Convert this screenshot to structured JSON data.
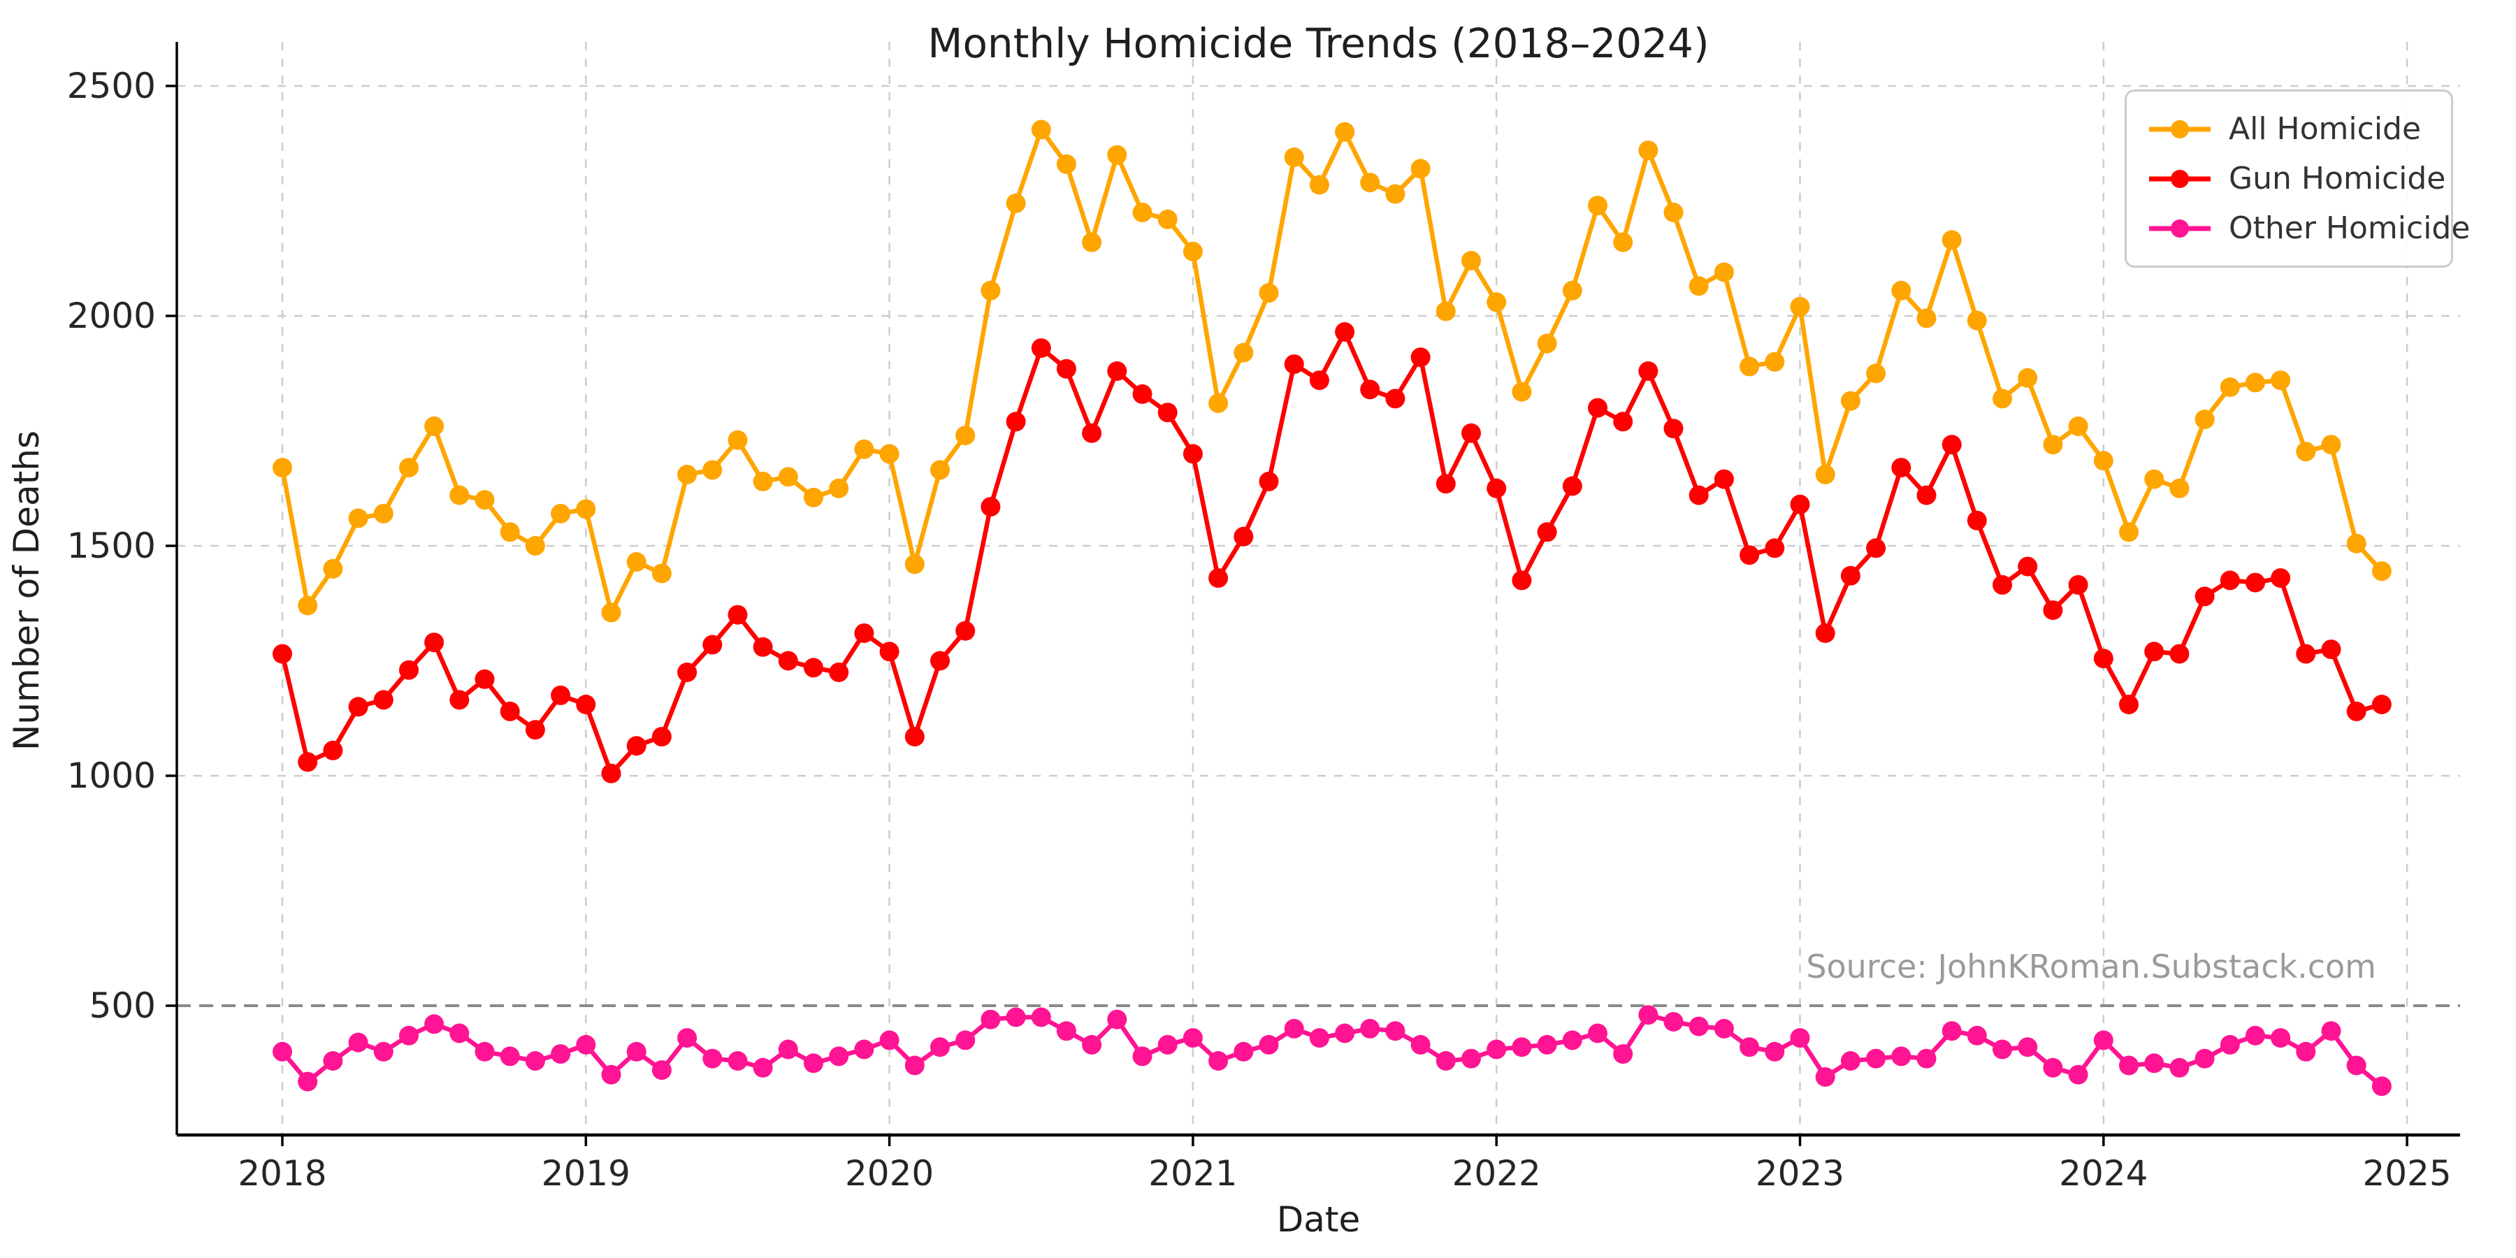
{
  "source_note": "Source: JohnKRoman.Substack.com",
  "chart_data": {
    "type": "line",
    "title": "Monthly Homicide Trends (2018–2024)",
    "xlabel": "Date",
    "ylabel": "Number of Deaths",
    "x_start": "2018-01",
    "x_end": "2024-12",
    "x_tick_labels": [
      "2018",
      "2019",
      "2020",
      "2021",
      "2022",
      "2023",
      "2024",
      "2025"
    ],
    "y_tick_labels": [
      "500",
      "1000",
      "1500",
      "2000",
      "2500"
    ],
    "y_ticks": [
      500,
      1000,
      1500,
      2000,
      2500
    ],
    "ylim": [
      220,
      2600
    ],
    "grid": "dashed",
    "reference_line": {
      "y": 500,
      "style": "dashed",
      "color": "#8a8a8a"
    },
    "legend_position": "upper right",
    "colors": {
      "grid": "#cccccc",
      "spine": "#000000",
      "text": "#1f1f1f",
      "tick_text": "#262626"
    },
    "series": [
      {
        "name": "All Homicide",
        "color": "#FFA500",
        "values": [
          1670,
          1370,
          1450,
          1560,
          1570,
          1670,
          1760,
          1610,
          1600,
          1530,
          1500,
          1570,
          1580,
          1355,
          1465,
          1440,
          1655,
          1665,
          1730,
          1640,
          1650,
          1605,
          1625,
          1710,
          1700,
          1460,
          1665,
          1740,
          2055,
          2245,
          2405,
          2330,
          2160,
          2350,
          2225,
          2210,
          2140,
          1810,
          1920,
          2050,
          2345,
          2285,
          2400,
          2290,
          2265,
          2320,
          2010,
          2120,
          2030,
          1835,
          1940,
          2055,
          2240,
          2160,
          2360,
          2225,
          2065,
          2095,
          1890,
          1900,
          2020,
          1655,
          1815,
          1875,
          2055,
          1995,
          2165,
          1990,
          1820,
          1865,
          1720,
          1760,
          1685,
          1530,
          1645,
          1625,
          1775,
          1845,
          1855,
          1860,
          1705,
          1720,
          1505,
          1445
        ]
      },
      {
        "name": "Gun Homicide",
        "color": "#FF0000",
        "values": [
          1265,
          1030,
          1055,
          1150,
          1165,
          1230,
          1290,
          1165,
          1210,
          1140,
          1100,
          1175,
          1155,
          1005,
          1065,
          1085,
          1225,
          1285,
          1350,
          1280,
          1250,
          1235,
          1225,
          1310,
          1270,
          1085,
          1250,
          1315,
          1585,
          1770,
          1930,
          1885,
          1745,
          1880,
          1830,
          1790,
          1700,
          1430,
          1520,
          1640,
          1895,
          1860,
          1965,
          1840,
          1820,
          1910,
          1635,
          1745,
          1625,
          1425,
          1530,
          1630,
          1800,
          1770,
          1880,
          1755,
          1610,
          1645,
          1480,
          1495,
          1590,
          1310,
          1435,
          1495,
          1670,
          1610,
          1720,
          1555,
          1415,
          1455,
          1360,
          1415,
          1255,
          1155,
          1270,
          1265,
          1390,
          1425,
          1420,
          1430,
          1265,
          1275,
          1140,
          1155
        ]
      },
      {
        "name": "Other Homicide",
        "color": "#FF1493",
        "values": [
          400,
          335,
          380,
          420,
          400,
          435,
          460,
          440,
          400,
          390,
          380,
          395,
          415,
          350,
          400,
          360,
          430,
          385,
          380,
          365,
          405,
          375,
          390,
          405,
          425,
          370,
          410,
          425,
          470,
          475,
          475,
          445,
          415,
          470,
          390,
          415,
          430,
          380,
          400,
          415,
          450,
          430,
          440,
          450,
          445,
          415,
          380,
          385,
          405,
          410,
          415,
          425,
          440,
          395,
          480,
          465,
          455,
          450,
          410,
          400,
          430,
          345,
          380,
          385,
          390,
          385,
          445,
          435,
          405,
          410,
          365,
          350,
          425,
          370,
          375,
          365,
          385,
          415,
          435,
          430,
          400,
          445,
          370,
          325
        ]
      }
    ]
  }
}
